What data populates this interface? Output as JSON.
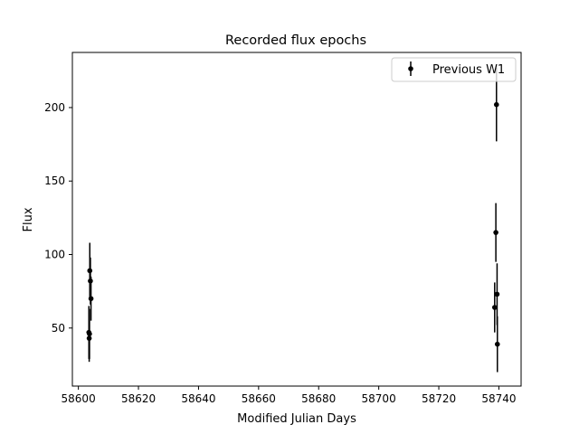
{
  "chart_data": {
    "type": "scatter",
    "title": "Recorded flux epochs",
    "xlabel": "Modified Julian Days",
    "ylabel": "Flux",
    "xlim": [
      58598,
      58747.4
    ],
    "ylim": [
      10.5,
      237.5
    ],
    "xticks": [
      {
        "value": 58600,
        "label": "58600"
      },
      {
        "value": 58620,
        "label": "58620"
      },
      {
        "value": 58640,
        "label": "58640"
      },
      {
        "value": 58660,
        "label": "58660"
      },
      {
        "value": 58680,
        "label": "58680"
      },
      {
        "value": 58700,
        "label": "58700"
      },
      {
        "value": 58720,
        "label": "58720"
      },
      {
        "value": 58740,
        "label": "58740"
      }
    ],
    "yticks": [
      {
        "value": 50,
        "label": "50"
      },
      {
        "value": 100,
        "label": "100"
      },
      {
        "value": 150,
        "label": "150"
      },
      {
        "value": 200,
        "label": "200"
      }
    ],
    "grid": false,
    "legend": {
      "position": "top-right"
    },
    "series": [
      {
        "name": "Previous W1",
        "color": "#000000",
        "marker": "circle",
        "points": [
          {
            "x": 58603.5,
            "y": 47,
            "yerr": 18
          },
          {
            "x": 58603.6,
            "y": 43,
            "yerr": 16
          },
          {
            "x": 58603.7,
            "y": 46,
            "yerr": 17
          },
          {
            "x": 58603.8,
            "y": 89,
            "yerr": 19
          },
          {
            "x": 58604.0,
            "y": 82,
            "yerr": 16
          },
          {
            "x": 58604.2,
            "y": 70,
            "yerr": 15
          },
          {
            "x": 58738.6,
            "y": 64,
            "yerr": 17
          },
          {
            "x": 58739.0,
            "y": 115,
            "yerr": 20
          },
          {
            "x": 58739.2,
            "y": 202,
            "yerr": 25
          },
          {
            "x": 58739.4,
            "y": 73,
            "yerr": 21
          },
          {
            "x": 58739.5,
            "y": 39,
            "yerr": 19
          }
        ]
      }
    ]
  }
}
